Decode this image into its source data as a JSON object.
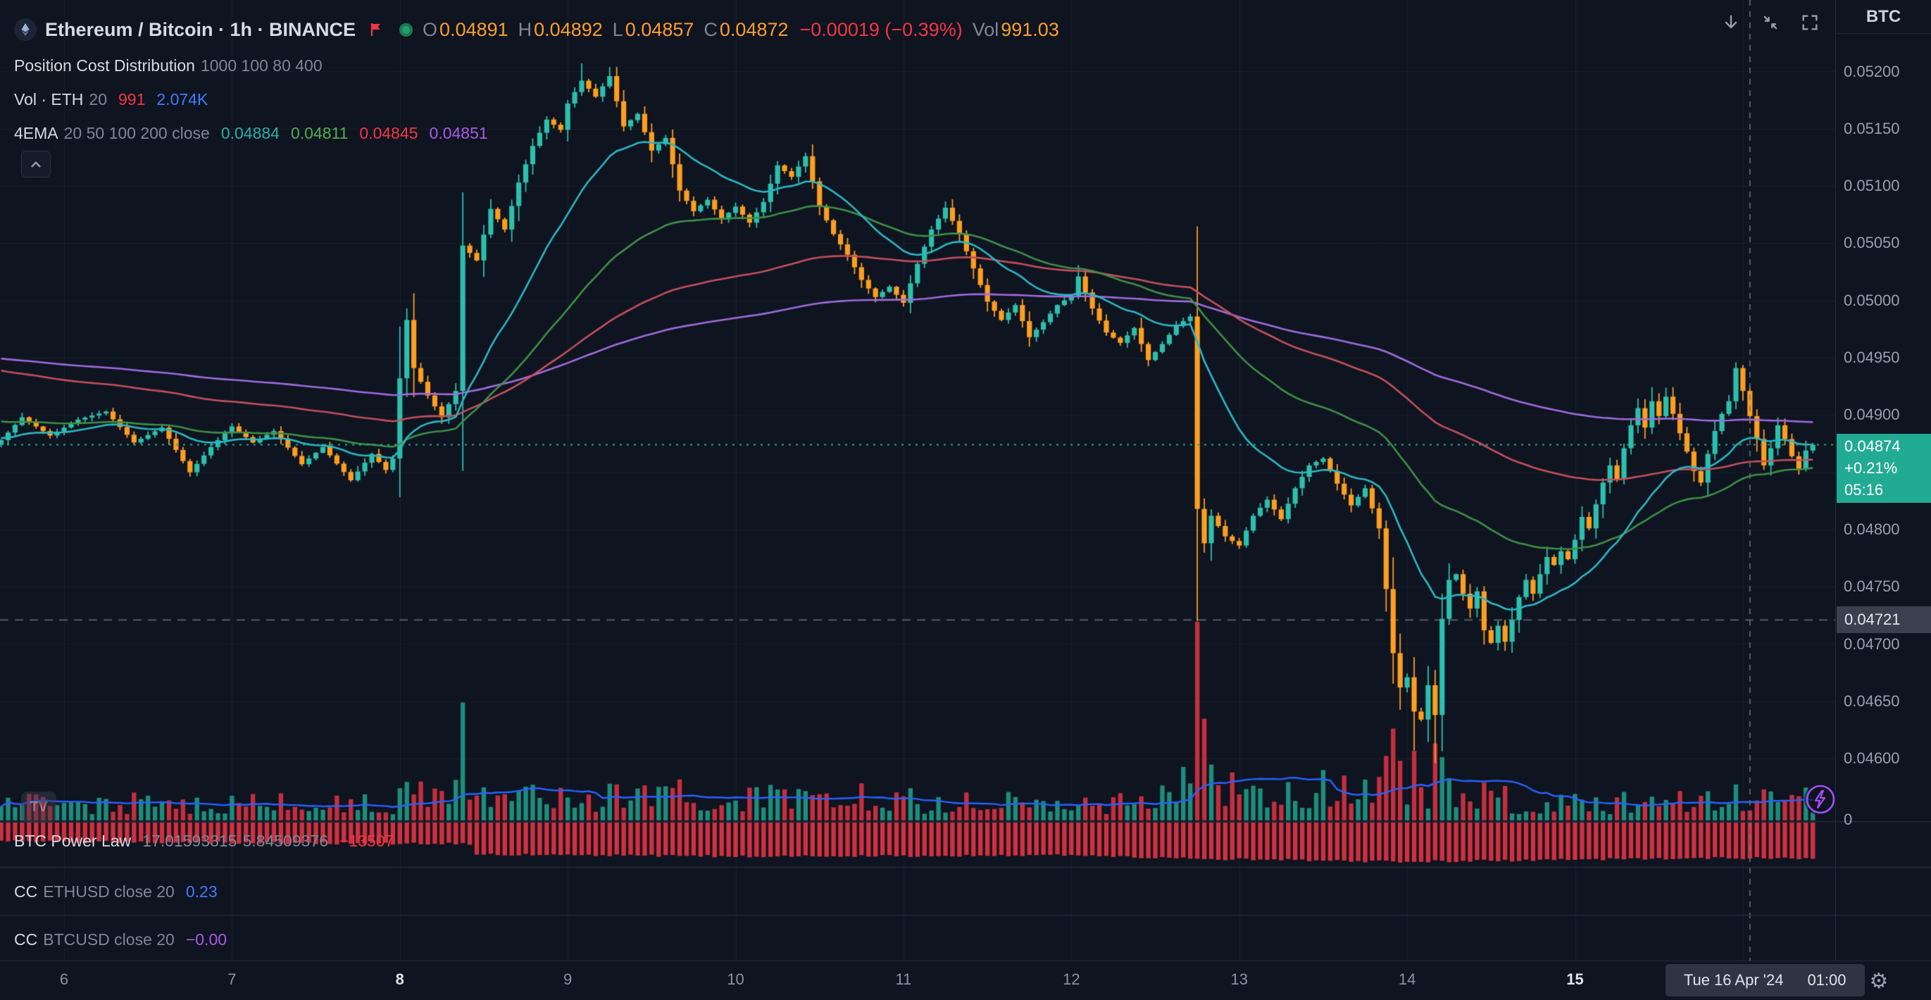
{
  "header": {
    "title": "Ethereum / Bitcoin · 1h · BINANCE",
    "ohlc": {
      "o_label": "O",
      "o_value": "0.04891",
      "h_label": "H",
      "h_value": "0.04892",
      "l_label": "L",
      "l_value": "0.04857",
      "c_label": "C",
      "c_value": "0.04872",
      "change": "−0.00019 (−0.39%)",
      "vol_label": "Vol",
      "vol_value": "991.03"
    },
    "toolbar": {
      "unit_button": "BTC"
    }
  },
  "legend": {
    "row2": {
      "name": "Position Cost Distribution",
      "params": "1000 100 80 400"
    },
    "row3": {
      "name": "Vol · ETH",
      "param": "20",
      "value1": "991",
      "value2": "2.074K"
    },
    "row4": {
      "name": "4EMA",
      "params": "20 50 100 200 close",
      "ema20": "0.04884",
      "ema50": "0.04811",
      "ema100": "0.04845",
      "ema200": "0.04851"
    }
  },
  "panes": {
    "power_law": {
      "name": "BTC Power Law",
      "value1": "17.01593315",
      "value2": "5.84509376",
      "value3": "−13507"
    },
    "cc_eth": {
      "name": "CC",
      "params": "ETHUSD close 20",
      "value": "0.23"
    },
    "cc_btc": {
      "name": "CC",
      "params": "BTCUSD close 20",
      "value": "−0.00"
    }
  },
  "price_scale": {
    "labels": [
      {
        "text": "0.05200",
        "price": 0.052
      },
      {
        "text": "0.05150",
        "price": 0.0515
      },
      {
        "text": "0.05100",
        "price": 0.051
      },
      {
        "text": "0.05050",
        "price": 0.0505
      },
      {
        "text": "0.05000",
        "price": 0.05
      },
      {
        "text": "0.04950",
        "price": 0.0495
      },
      {
        "text": "0.04900",
        "price": 0.049
      },
      {
        "text": "0.04800",
        "price": 0.048
      },
      {
        "text": "0.04750",
        "price": 0.0475
      },
      {
        "text": "0.04700",
        "price": 0.047
      },
      {
        "text": "0.04650",
        "price": 0.0465
      },
      {
        "text": "0.04600",
        "price": 0.046
      }
    ],
    "volume_zero_label": "0",
    "current_badge": {
      "price_text": "0.04874",
      "change_text": "+0.21%",
      "countdown_text": "05:16",
      "color": "#22ab94"
    },
    "level_badge": {
      "text": "0.04721"
    }
  },
  "time_axis": {
    "labels": [
      {
        "text": "6",
        "bar": 9,
        "bold": false
      },
      {
        "text": "7",
        "bar": 33,
        "bold": false
      },
      {
        "text": "8",
        "bar": 57,
        "bold": true
      },
      {
        "text": "9",
        "bar": 81,
        "bold": false
      },
      {
        "text": "10",
        "bar": 105,
        "bold": false
      },
      {
        "text": "11",
        "bar": 129,
        "bold": false
      },
      {
        "text": "12",
        "bar": 153,
        "bold": false
      },
      {
        "text": "13",
        "bar": 177,
        "bold": false
      },
      {
        "text": "14",
        "bar": 201,
        "bold": false
      },
      {
        "text": "15",
        "bar": 225,
        "bold": true
      }
    ],
    "crosshair_badge": {
      "date": "Tue 16 Apr '24",
      "time": "01:00"
    }
  },
  "chart_data": {
    "type": "candlestick",
    "title": "Ethereum / Bitcoin",
    "interval": "1h",
    "exchange": "BINANCE",
    "bars_total": 260,
    "bars_per_day": 24,
    "day_tick_bars": [
      9,
      33,
      57,
      81,
      105,
      129,
      153,
      177,
      201,
      225,
      249
    ],
    "price_axis": {
      "labels_min": 0.046,
      "labels_max": 0.052,
      "step": 0.0005
    },
    "current_price": 0.04874,
    "level_line_price": 0.04721,
    "crosshair_bar": 250,
    "close_anchors": [
      [
        0,
        0.04878
      ],
      [
        3,
        0.04898
      ],
      [
        7,
        0.04882
      ],
      [
        11,
        0.04896
      ],
      [
        15,
        0.04903
      ],
      [
        19,
        0.04876
      ],
      [
        23,
        0.04889
      ],
      [
        27,
        0.0485
      ],
      [
        30,
        0.04872
      ],
      [
        33,
        0.0489
      ],
      [
        36,
        0.04876
      ],
      [
        39,
        0.04886
      ],
      [
        43,
        0.04857
      ],
      [
        46,
        0.04872
      ],
      [
        50,
        0.04843
      ],
      [
        53,
        0.04866
      ],
      [
        55,
        0.04852
      ],
      [
        56,
        0.04862
      ],
      [
        57,
        0.04932
      ],
      [
        58,
        0.04983
      ],
      [
        59,
        0.04941
      ],
      [
        61,
        0.04917
      ],
      [
        63,
        0.04898
      ],
      [
        65,
        0.04921
      ],
      [
        66,
        0.05048
      ],
      [
        68,
        0.05035
      ],
      [
        70,
        0.0508
      ],
      [
        72,
        0.05062
      ],
      [
        74,
        0.05103
      ],
      [
        76,
        0.05135
      ],
      [
        78,
        0.05158
      ],
      [
        80,
        0.05149
      ],
      [
        81,
        0.05172
      ],
      [
        83,
        0.05192
      ],
      [
        85,
        0.05178
      ],
      [
        87,
        0.05196
      ],
      [
        89,
        0.05152
      ],
      [
        91,
        0.05163
      ],
      [
        93,
        0.05131
      ],
      [
        95,
        0.05142
      ],
      [
        97,
        0.05096
      ],
      [
        99,
        0.05078
      ],
      [
        101,
        0.05088
      ],
      [
        103,
        0.05071
      ],
      [
        105,
        0.05082
      ],
      [
        107,
        0.05068
      ],
      [
        109,
        0.05086
      ],
      [
        111,
        0.05118
      ],
      [
        113,
        0.05108
      ],
      [
        115,
        0.05126
      ],
      [
        117,
        0.05082
      ],
      [
        119,
        0.05058
      ],
      [
        121,
        0.0504
      ],
      [
        123,
        0.05018
      ],
      [
        125,
        0.05003
      ],
      [
        127,
        0.05012
      ],
      [
        129,
        0.04998
      ],
      [
        131,
        0.05032
      ],
      [
        133,
        0.05062
      ],
      [
        135,
        0.05081
      ],
      [
        137,
        0.05058
      ],
      [
        139,
        0.05028
      ],
      [
        141,
        0.04999
      ],
      [
        143,
        0.04983
      ],
      [
        145,
        0.04996
      ],
      [
        147,
        0.04968
      ],
      [
        149,
        0.04981
      ],
      [
        151,
        0.04996
      ],
      [
        153,
        0.05004
      ],
      [
        154,
        0.05021
      ],
      [
        156,
        0.04993
      ],
      [
        158,
        0.04972
      ],
      [
        160,
        0.04963
      ],
      [
        162,
        0.04976
      ],
      [
        164,
        0.04948
      ],
      [
        166,
        0.04962
      ],
      [
        168,
        0.04978
      ],
      [
        170,
        0.04986
      ],
      [
        171,
        0.04818
      ],
      [
        172,
        0.04788
      ],
      [
        173,
        0.04812
      ],
      [
        175,
        0.04794
      ],
      [
        177,
        0.04786
      ],
      [
        179,
        0.04812
      ],
      [
        181,
        0.04826
      ],
      [
        183,
        0.04809
      ],
      [
        185,
        0.04836
      ],
      [
        187,
        0.04856
      ],
      [
        189,
        0.04862
      ],
      [
        191,
        0.0484
      ],
      [
        193,
        0.04821
      ],
      [
        195,
        0.04836
      ],
      [
        197,
        0.04801
      ],
      [
        198,
        0.04748
      ],
      [
        199,
        0.04692
      ],
      [
        200,
        0.04662
      ],
      [
        201,
        0.04671
      ],
      [
        202,
        0.04641
      ],
      [
        203,
        0.04634
      ],
      [
        204,
        0.04664
      ],
      [
        205,
        0.04638
      ],
      [
        206,
        0.04722
      ],
      [
        207,
        0.04756
      ],
      [
        208,
        0.04761
      ],
      [
        209,
        0.04744
      ],
      [
        210,
        0.04731
      ],
      [
        211,
        0.04746
      ],
      [
        212,
        0.04712
      ],
      [
        213,
        0.04701
      ],
      [
        214,
        0.04716
      ],
      [
        215,
        0.04702
      ],
      [
        216,
        0.04721
      ],
      [
        217,
        0.04741
      ],
      [
        218,
        0.04756
      ],
      [
        219,
        0.04744
      ],
      [
        220,
        0.04761
      ],
      [
        221,
        0.04776
      ],
      [
        222,
        0.04769
      ],
      [
        223,
        0.04781
      ],
      [
        224,
        0.04774
      ],
      [
        225,
        0.04791
      ],
      [
        226,
        0.04811
      ],
      [
        227,
        0.04801
      ],
      [
        228,
        0.04822
      ],
      [
        229,
        0.04841
      ],
      [
        230,
        0.04856
      ],
      [
        231,
        0.04844
      ],
      [
        232,
        0.04871
      ],
      [
        233,
        0.04891
      ],
      [
        234,
        0.04906
      ],
      [
        235,
        0.04889
      ],
      [
        236,
        0.04912
      ],
      [
        237,
        0.04899
      ],
      [
        238,
        0.04916
      ],
      [
        239,
        0.04901
      ],
      [
        240,
        0.04884
      ],
      [
        241,
        0.04868
      ],
      [
        242,
        0.04851
      ],
      [
        243,
        0.04841
      ],
      [
        244,
        0.04866
      ],
      [
        245,
        0.04886
      ],
      [
        246,
        0.04901
      ],
      [
        247,
        0.04912
      ],
      [
        248,
        0.04941
      ],
      [
        249,
        0.04921
      ],
      [
        250,
        0.04899
      ],
      [
        251,
        0.04879
      ],
      [
        252,
        0.04856
      ],
      [
        253,
        0.04871
      ],
      [
        254,
        0.04891
      ],
      [
        255,
        0.04879
      ],
      [
        256,
        0.04864
      ],
      [
        257,
        0.04853
      ],
      [
        258,
        0.04869
      ],
      [
        259,
        0.04874
      ]
    ],
    "wick_overrides": {
      "58": {
        "h": 0.04993
      },
      "83": {
        "h": 0.05207
      },
      "87": {
        "h": 0.05204
      },
      "171": {
        "l": 0.0472
      },
      "202": {
        "l": 0.04607
      },
      "205": {
        "l": 0.04596
      },
      "248": {
        "h": 0.04946
      }
    },
    "volume_max_scale": 16000,
    "volume_base_range": [
      500,
      2300
    ],
    "volume_boost_ranges": [
      [
        57,
        70,
        1.6
      ],
      [
        74,
        130,
        1.35
      ],
      [
        160,
        215,
        1.9
      ],
      [
        240,
        259,
        1.3
      ]
    ],
    "volume_spikes": {
      "57": 2600,
      "58": 3100,
      "66": 9500,
      "88": 2900,
      "97": 3300,
      "111": 2500,
      "130": 2600,
      "171": 16000,
      "172": 8200,
      "173": 4500,
      "197": 3500,
      "198": 5200,
      "199": 7400,
      "200": 4800,
      "202": 5600,
      "205": 6200,
      "206": 5100,
      "207": 3400,
      "248": 2900,
      "252": 2500
    },
    "volume_ma": {
      "period": 20,
      "color": "#2962ff"
    },
    "emas": [
      {
        "period": 20,
        "seed": 0.0488,
        "color": "#2ab8c4"
      },
      {
        "period": 50,
        "seed": 0.04895,
        "color": "#3f8f46"
      },
      {
        "period": 100,
        "seed": 0.0494,
        "color": "#c2505c"
      },
      {
        "period": 200,
        "seed": 0.0495,
        "color": "#a06bdd"
      }
    ],
    "power_law_anchors": [
      [
        0,
        -7200
      ],
      [
        40,
        -7800
      ],
      [
        67,
        -8100
      ],
      [
        68,
        -12200
      ],
      [
        110,
        -12900
      ],
      [
        150,
        -12400
      ],
      [
        168,
        -13600
      ],
      [
        200,
        -14900
      ],
      [
        225,
        -14100
      ],
      [
        245,
        -13500
      ],
      [
        259,
        -13507
      ]
    ],
    "power_law_scale_min": -15500,
    "colors": {
      "up": "#2cc0ad",
      "down": "#ff9e1f",
      "vol_up": "rgba(34,171,148,0.8)",
      "vol_down": "rgba(242,54,69,0.8)",
      "hist": "rgba(242,54,69,0.85)",
      "current_line": "#22ab94",
      "level_line": "#5d6674",
      "crosshair": "#6f7683",
      "grid": "rgba(150,165,200,0.07)",
      "separator": "#242b3a"
    }
  }
}
